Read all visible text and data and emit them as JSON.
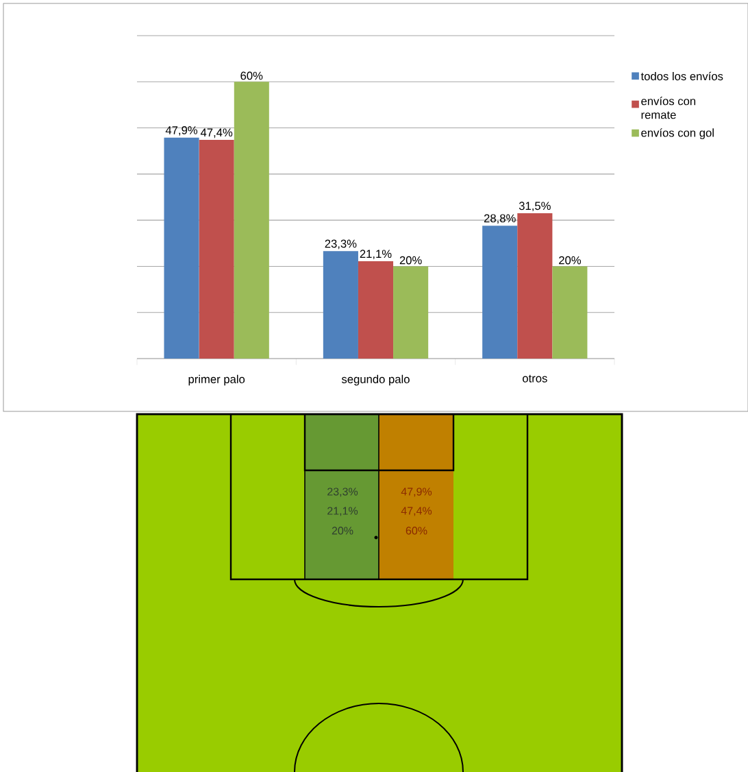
{
  "chart_data": [
    {
      "type": "bar",
      "categories": [
        "primer palo",
        "segundo palo",
        "otros"
      ],
      "series": [
        {
          "name": "todos los envíos",
          "color": "#4f81bd",
          "values": [
            47.9,
            23.3,
            28.8
          ],
          "value_labels": [
            "47,9%",
            "23,3%",
            "28,8%"
          ]
        },
        {
          "name": "envíos con remate",
          "color": "#c0504d",
          "values": [
            47.4,
            21.1,
            31.5
          ],
          "value_labels": [
            "47,4%",
            "21,1%",
            "31,5%"
          ]
        },
        {
          "name": "envíos con gol",
          "color": "#9bbb59",
          "values": [
            60,
            20,
            20
          ],
          "value_labels": [
            "60%",
            "20%",
            "20%"
          ]
        }
      ],
      "ylim": [
        0,
        70
      ],
      "yticks": [
        {
          "value": 0,
          "label": null
        },
        {
          "value": 10,
          "label": null
        },
        {
          "value": 20,
          "label": null
        },
        {
          "value": 30,
          "label": null
        },
        {
          "value": 40,
          "label": null
        },
        {
          "value": 50,
          "label": null
        },
        {
          "value": 60,
          "label": null
        },
        {
          "value": 70,
          "label": null
        }
      ],
      "grid": "y",
      "legend": "right"
    },
    {
      "type": "other",
      "annotations": [
        "23,3%",
        "21,1%",
        "20%",
        "47,9%",
        "47,4%",
        "60%"
      ]
    }
  ]
}
